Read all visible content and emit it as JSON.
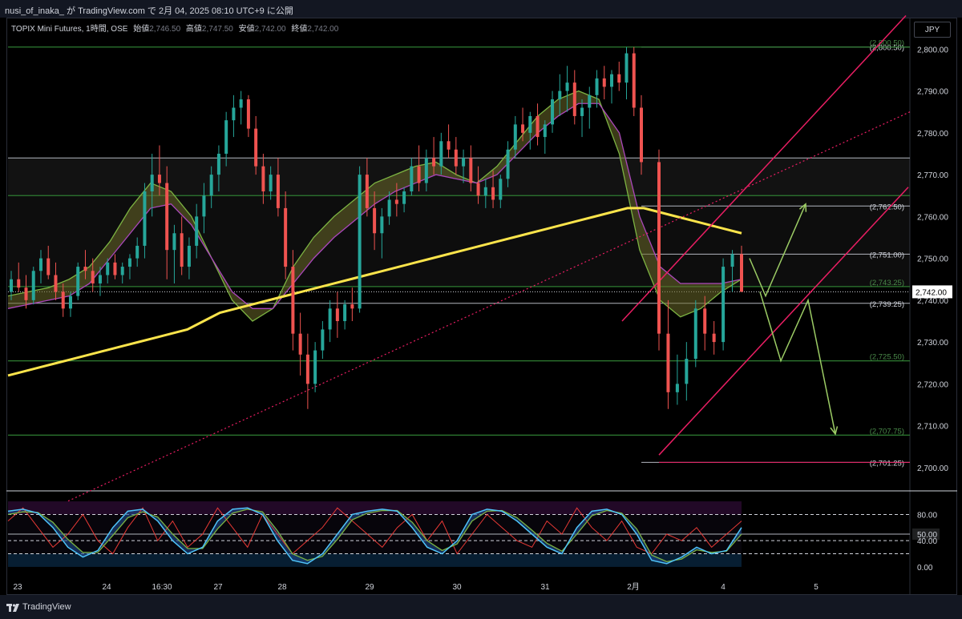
{
  "header": {
    "publish_text": "nusi_of_inaka_ が TradingView.com で 2月 04, 2025 08:10 UTC+9 に公開"
  },
  "legend": {
    "symbol": "TOPIX Mini Futures, 1時間, OSE",
    "open_label": "始値",
    "open_value": "2,746.50",
    "high_label": "高値",
    "high_value": "2,747.50",
    "low_label": "安値",
    "low_value": "2,742.00",
    "close_label": "終値",
    "close_value": "2,742.00"
  },
  "currency": "JPY",
  "footer": {
    "brand": "TradingView"
  },
  "colors": {
    "background": "#000000",
    "up": "#26a69a",
    "down": "#ef5350",
    "ma200": "#fbe44b",
    "channel": "#e91e63",
    "level_green": "#1b5e20",
    "level_white": "#b2b5be",
    "arrow": "#9ccc65",
    "stoch_blue": "#1e4a8c"
  },
  "chart_data": [
    {
      "type": "candlestick",
      "title": "TOPIX Mini Futures, 1時間, OSE",
      "ylim": [
        2695,
        2806
      ],
      "y_ticks": [
        "2,800.00",
        "2,790.00",
        "2,780.00",
        "2,770.00",
        "2,760.00",
        "2,750.00",
        "2,740.00",
        "2,730.00",
        "2,720.00",
        "2,710.00",
        "2,700.00"
      ],
      "x_ticks": [
        "23",
        "24",
        "16:30",
        "27",
        "28",
        "29",
        "30",
        "31",
        "2月",
        "4",
        "5"
      ],
      "current_price": "2,742.00",
      "price_levels": [
        {
          "label": "(2,800.50)",
          "value": 2800.5,
          "color": "white"
        },
        {
          "label": "(2,800.50)",
          "value": 2800.5,
          "color": "green"
        },
        {
          "value": 2774,
          "color": "white"
        },
        {
          "label": "(2,762.50)",
          "value": 2762.5,
          "color": "white"
        },
        {
          "value": 2765,
          "color": "green"
        },
        {
          "label": "(2,751.00)",
          "value": 2751.0,
          "color": "white"
        },
        {
          "label": "(2,743.25)",
          "value": 2743.25,
          "color": "green"
        },
        {
          "label": "(2,739.25)",
          "value": 2739.25,
          "color": "white"
        },
        {
          "label": "(2,725.50)",
          "value": 2725.5,
          "color": "green"
        },
        {
          "label": "(2,707.75)",
          "value": 2707.75,
          "color": "green"
        },
        {
          "label": "(2,701.25)",
          "value": 2701.25,
          "color": "white"
        }
      ],
      "candles": [
        [
          2742,
          2747,
          2740,
          2745
        ],
        [
          2745,
          2749,
          2742,
          2743
        ],
        [
          2743,
          2746,
          2738,
          2740
        ],
        [
          2740,
          2748,
          2739,
          2747
        ],
        [
          2747,
          2752,
          2744,
          2750
        ],
        [
          2750,
          2753,
          2745,
          2746
        ],
        [
          2746,
          2749,
          2740,
          2742
        ],
        [
          2742,
          2744,
          2736,
          2738
        ],
        [
          2738,
          2742,
          2736,
          2741
        ],
        [
          2741,
          2749,
          2740,
          2748
        ],
        [
          2748,
          2752,
          2745,
          2747
        ],
        [
          2747,
          2750,
          2742,
          2744
        ],
        [
          2744,
          2748,
          2741,
          2746
        ],
        [
          2746,
          2750,
          2744,
          2749
        ],
        [
          2749,
          2751,
          2745,
          2746
        ],
        [
          2746,
          2749,
          2744,
          2748
        ],
        [
          2748,
          2751,
          2745,
          2750
        ],
        [
          2750,
          2755,
          2748,
          2753
        ],
        [
          2753,
          2768,
          2750,
          2766
        ],
        [
          2766,
          2775,
          2760,
          2770
        ],
        [
          2770,
          2777,
          2765,
          2768
        ],
        [
          2768,
          2772,
          2745,
          2752
        ],
        [
          2752,
          2758,
          2744,
          2756
        ],
        [
          2756,
          2760,
          2746,
          2748
        ],
        [
          2748,
          2755,
          2745,
          2753
        ],
        [
          2753,
          2763,
          2750,
          2760
        ],
        [
          2760,
          2768,
          2756,
          2765
        ],
        [
          2765,
          2772,
          2762,
          2770
        ],
        [
          2770,
          2777,
          2766,
          2775
        ],
        [
          2775,
          2785,
          2772,
          2783
        ],
        [
          2783,
          2789,
          2779,
          2786
        ],
        [
          2786,
          2790,
          2782,
          2788
        ],
        [
          2788,
          2789,
          2779,
          2781
        ],
        [
          2781,
          2784,
          2770,
          2772
        ],
        [
          2772,
          2775,
          2763,
          2766
        ],
        [
          2766,
          2772,
          2764,
          2770
        ],
        [
          2770,
          2774,
          2760,
          2762
        ],
        [
          2762,
          2766,
          2745,
          2748
        ],
        [
          2748,
          2752,
          2728,
          2732
        ],
        [
          2732,
          2737,
          2722,
          2727
        ],
        [
          2727,
          2732,
          2714,
          2720
        ],
        [
          2720,
          2730,
          2718,
          2728
        ],
        [
          2728,
          2735,
          2726,
          2733
        ],
        [
          2733,
          2740,
          2730,
          2738
        ],
        [
          2738,
          2742,
          2731,
          2735
        ],
        [
          2735,
          2740,
          2733,
          2739
        ],
        [
          2739,
          2743,
          2735,
          2738
        ],
        [
          2738,
          2772,
          2737,
          2770
        ],
        [
          2770,
          2774,
          2760,
          2762
        ],
        [
          2762,
          2766,
          2752,
          2756
        ],
        [
          2756,
          2762,
          2750,
          2760
        ],
        [
          2760,
          2766,
          2758,
          2764
        ],
        [
          2764,
          2768,
          2760,
          2763
        ],
        [
          2763,
          2767,
          2761,
          2766
        ],
        [
          2766,
          2774,
          2765,
          2772
        ],
        [
          2772,
          2777,
          2766,
          2768
        ],
        [
          2768,
          2776,
          2766,
          2774
        ],
        [
          2774,
          2779,
          2770,
          2772
        ],
        [
          2772,
          2780,
          2770,
          2778
        ],
        [
          2778,
          2782,
          2774,
          2776
        ],
        [
          2776,
          2779,
          2770,
          2772
        ],
        [
          2772,
          2776,
          2768,
          2774
        ],
        [
          2774,
          2777,
          2766,
          2768
        ],
        [
          2768,
          2772,
          2763,
          2765
        ],
        [
          2765,
          2769,
          2762,
          2767
        ],
        [
          2767,
          2771,
          2762,
          2764
        ],
        [
          2764,
          2770,
          2762,
          2769
        ],
        [
          2769,
          2778,
          2767,
          2776
        ],
        [
          2776,
          2784,
          2774,
          2782
        ],
        [
          2782,
          2786,
          2778,
          2780
        ],
        [
          2780,
          2785,
          2776,
          2784
        ],
        [
          2784,
          2787,
          2777,
          2779
        ],
        [
          2779,
          2783,
          2775,
          2782
        ],
        [
          2782,
          2790,
          2780,
          2788
        ],
        [
          2788,
          2794,
          2784,
          2790
        ],
        [
          2790,
          2796,
          2785,
          2792
        ],
        [
          2792,
          2795,
          2782,
          2784
        ],
        [
          2784,
          2788,
          2779,
          2786
        ],
        [
          2786,
          2791,
          2781,
          2789
        ],
        [
          2789,
          2795,
          2786,
          2793
        ],
        [
          2793,
          2796,
          2788,
          2791
        ],
        [
          2791,
          2795,
          2787,
          2794
        ],
        [
          2794,
          2797,
          2790,
          2792
        ],
        [
          2792,
          2800.5,
          2788,
          2799
        ],
        [
          2799,
          2800.5,
          2784,
          2786
        ],
        [
          2786,
          2789,
          2770,
          2773
        ],
        [
          2773,
          2776,
          2728,
          2732
        ],
        [
          2732,
          2740,
          2714,
          2718
        ],
        [
          2718,
          2727,
          2715,
          2720
        ],
        [
          2720,
          2730,
          2716,
          2726
        ],
        [
          2726,
          2740,
          2724,
          2738
        ],
        [
          2738,
          2741,
          2728,
          2732
        ],
        [
          2732,
          2735,
          2727,
          2730
        ],
        [
          2730,
          2750,
          2728,
          2748
        ],
        [
          2748,
          2752,
          2742,
          2751
        ],
        [
          2751,
          2753,
          2742,
          2742
        ]
      ],
      "ma200": [
        2722,
        2723,
        2724,
        2725,
        2726,
        2727,
        2728,
        2729,
        2730,
        2731,
        2732,
        2733,
        2735,
        2737,
        2738,
        2739,
        2740,
        2741,
        2742,
        2743,
        2744,
        2745,
        2746,
        2747,
        2748,
        2749,
        2750,
        2751,
        2752,
        2753,
        2754,
        2755,
        2756,
        2757,
        2758,
        2759,
        2760,
        2761,
        2762,
        2762,
        2761,
        2760,
        2759,
        2758,
        2757,
        2756
      ],
      "ribbon_fast": [
        2741,
        2742,
        2743,
        2745,
        2748,
        2754,
        2762,
        2768,
        2766,
        2760,
        2750,
        2740,
        2735,
        2738,
        2748,
        2755,
        2760,
        2764,
        2768,
        2770,
        2772,
        2773,
        2770,
        2768,
        2772,
        2778,
        2784,
        2788,
        2790,
        2788,
        2775,
        2752,
        2740,
        2736,
        2738,
        2742,
        2745
      ],
      "ribbon_slow": [
        2738,
        2739,
        2740,
        2741,
        2744,
        2750,
        2756,
        2762,
        2763,
        2758,
        2750,
        2742,
        2738,
        2738,
        2744,
        2750,
        2755,
        2759,
        2763,
        2766,
        2768,
        2770,
        2769,
        2768,
        2770,
        2775,
        2780,
        2784,
        2787,
        2787,
        2780,
        2760,
        2748,
        2744,
        2744,
        2744,
        2745
      ]
    },
    {
      "type": "line",
      "title": "Stochastic RSI",
      "ylim": [
        -5,
        105
      ],
      "y_ticks": [
        "80.00",
        "50.00",
        "40.00",
        "0.00"
      ],
      "levels": [
        80,
        50,
        40,
        20
      ],
      "series": [
        {
          "values": [
            85,
            88,
            82,
            60,
            30,
            15,
            25,
            60,
            85,
            88,
            70,
            40,
            20,
            30,
            70,
            88,
            90,
            80,
            40,
            10,
            5,
            20,
            50,
            80,
            85,
            88,
            85,
            60,
            30,
            20,
            40,
            80,
            88,
            85,
            70,
            50,
            30,
            20,
            60,
            85,
            88,
            80,
            50,
            10,
            5,
            15,
            30,
            20,
            25,
            60
          ]
        },
        {
          "values": [
            80,
            84,
            83,
            68,
            42,
            22,
            22,
            48,
            75,
            84,
            76,
            50,
            28,
            28,
            58,
            82,
            88,
            84,
            55,
            20,
            10,
            16,
            42,
            72,
            82,
            86,
            86,
            68,
            40,
            25,
            35,
            70,
            85,
            86,
            75,
            56,
            36,
            24,
            50,
            78,
            86,
            82,
            58,
            18,
            8,
            12,
            26,
            22,
            24,
            50
          ]
        },
        {
          "values": [
            70,
            90,
            60,
            30,
            50,
            80,
            40,
            20,
            60,
            90,
            40,
            70,
            30,
            50,
            90,
            60,
            30,
            80,
            50,
            20,
            40,
            60,
            90,
            70,
            50,
            30,
            60,
            80,
            40,
            70,
            20,
            50,
            80,
            60,
            40,
            30,
            70,
            50,
            90,
            60,
            40,
            70,
            30,
            20,
            50,
            40,
            60,
            30,
            50,
            70
          ]
        }
      ]
    }
  ]
}
